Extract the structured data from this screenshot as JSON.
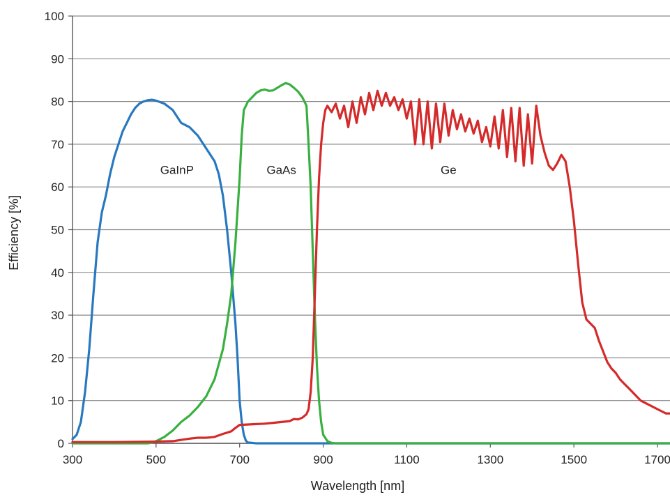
{
  "chart_data": {
    "type": "line",
    "title": "",
    "xlabel": "Wavelength [nm]",
    "ylabel": "Efficiency [%]",
    "xlim": [
      300,
      1730
    ],
    "ylim": [
      0,
      100
    ],
    "xticks": [
      300,
      500,
      700,
      900,
      1100,
      1300,
      1500,
      1700
    ],
    "yticks": [
      0,
      10,
      20,
      30,
      40,
      50,
      60,
      70,
      80,
      90,
      100
    ],
    "grid": "horizontal",
    "legend": "none",
    "series": [
      {
        "name": "GaInP",
        "color": "#2878c0",
        "label_at": [
          550,
          64
        ],
        "points": [
          [
            300,
            1
          ],
          [
            310,
            2
          ],
          [
            320,
            5
          ],
          [
            330,
            12
          ],
          [
            340,
            22
          ],
          [
            350,
            35
          ],
          [
            360,
            47
          ],
          [
            370,
            54
          ],
          [
            380,
            58
          ],
          [
            390,
            63
          ],
          [
            400,
            67
          ],
          [
            410,
            70
          ],
          [
            420,
            73
          ],
          [
            430,
            75
          ],
          [
            440,
            77
          ],
          [
            450,
            78.5
          ],
          [
            460,
            79.5
          ],
          [
            470,
            80
          ],
          [
            480,
            80.3
          ],
          [
            490,
            80.4
          ],
          [
            500,
            80.2
          ],
          [
            520,
            79.5
          ],
          [
            540,
            78
          ],
          [
            560,
            75
          ],
          [
            580,
            74
          ],
          [
            600,
            72
          ],
          [
            620,
            69
          ],
          [
            640,
            66
          ],
          [
            650,
            63
          ],
          [
            660,
            58
          ],
          [
            670,
            50
          ],
          [
            680,
            40
          ],
          [
            690,
            28
          ],
          [
            695,
            20
          ],
          [
            700,
            10
          ],
          [
            705,
            5
          ],
          [
            710,
            2
          ],
          [
            715,
            0.6
          ],
          [
            720,
            0.2
          ],
          [
            740,
            0
          ],
          [
            1730,
            0
          ]
        ]
      },
      {
        "name": "GaAs",
        "color": "#38b040",
        "label_at": [
          800,
          64
        ],
        "points": [
          [
            300,
            0
          ],
          [
            480,
            0
          ],
          [
            490,
            0.2
          ],
          [
            500,
            0.5
          ],
          [
            520,
            1.5
          ],
          [
            540,
            3
          ],
          [
            560,
            5
          ],
          [
            580,
            6.5
          ],
          [
            600,
            8.5
          ],
          [
            620,
            11
          ],
          [
            640,
            15
          ],
          [
            660,
            22
          ],
          [
            670,
            28
          ],
          [
            680,
            35
          ],
          [
            690,
            47
          ],
          [
            700,
            62
          ],
          [
            705,
            72
          ],
          [
            710,
            78
          ],
          [
            720,
            80
          ],
          [
            730,
            81
          ],
          [
            740,
            82
          ],
          [
            750,
            82.6
          ],
          [
            760,
            82.8
          ],
          [
            770,
            82.5
          ],
          [
            780,
            82.6
          ],
          [
            790,
            83.2
          ],
          [
            800,
            83.8
          ],
          [
            810,
            84.3
          ],
          [
            820,
            84
          ],
          [
            830,
            83.2
          ],
          [
            840,
            82.3
          ],
          [
            850,
            81
          ],
          [
            860,
            79
          ],
          [
            865,
            70
          ],
          [
            870,
            60
          ],
          [
            875,
            45
          ],
          [
            880,
            30
          ],
          [
            885,
            18
          ],
          [
            890,
            10
          ],
          [
            895,
            5
          ],
          [
            900,
            2
          ],
          [
            910,
            0.5
          ],
          [
            920,
            0.1
          ],
          [
            930,
            0
          ],
          [
            1730,
            0
          ]
        ]
      },
      {
        "name": "Ge",
        "color": "#d42a2a",
        "label_at": [
          1200,
          64
        ],
        "points": [
          [
            300,
            0.3
          ],
          [
            400,
            0.3
          ],
          [
            500,
            0.4
          ],
          [
            540,
            0.5
          ],
          [
            560,
            0.8
          ],
          [
            580,
            1.1
          ],
          [
            600,
            1.3
          ],
          [
            620,
            1.3
          ],
          [
            640,
            1.5
          ],
          [
            660,
            2.2
          ],
          [
            680,
            2.8
          ],
          [
            690,
            3.6
          ],
          [
            700,
            4.3
          ],
          [
            720,
            4.4
          ],
          [
            740,
            4.5
          ],
          [
            760,
            4.6
          ],
          [
            780,
            4.8
          ],
          [
            800,
            5
          ],
          [
            820,
            5.2
          ],
          [
            830,
            5.7
          ],
          [
            840,
            5.6
          ],
          [
            850,
            6
          ],
          [
            860,
            6.8
          ],
          [
            865,
            8
          ],
          [
            870,
            12
          ],
          [
            875,
            20
          ],
          [
            880,
            35
          ],
          [
            885,
            50
          ],
          [
            890,
            62
          ],
          [
            895,
            70
          ],
          [
            900,
            75
          ],
          [
            905,
            78
          ],
          [
            910,
            79
          ],
          [
            920,
            77.5
          ],
          [
            930,
            79.5
          ],
          [
            940,
            76
          ],
          [
            950,
            79
          ],
          [
            960,
            74
          ],
          [
            970,
            80
          ],
          [
            980,
            75
          ],
          [
            990,
            81
          ],
          [
            1000,
            77
          ],
          [
            1010,
            82
          ],
          [
            1020,
            78
          ],
          [
            1030,
            82.5
          ],
          [
            1040,
            79
          ],
          [
            1050,
            82
          ],
          [
            1060,
            79
          ],
          [
            1070,
            81
          ],
          [
            1080,
            78
          ],
          [
            1090,
            80.5
          ],
          [
            1100,
            76
          ],
          [
            1110,
            80
          ],
          [
            1120,
            70
          ],
          [
            1130,
            80.5
          ],
          [
            1140,
            70
          ],
          [
            1150,
            80
          ],
          [
            1160,
            69
          ],
          [
            1170,
            79.5
          ],
          [
            1180,
            70.5
          ],
          [
            1190,
            79.5
          ],
          [
            1200,
            72
          ],
          [
            1210,
            78
          ],
          [
            1220,
            73.5
          ],
          [
            1230,
            77
          ],
          [
            1240,
            73
          ],
          [
            1250,
            76
          ],
          [
            1260,
            72.5
          ],
          [
            1270,
            75.5
          ],
          [
            1280,
            70.5
          ],
          [
            1290,
            74
          ],
          [
            1300,
            69.5
          ],
          [
            1310,
            76.5
          ],
          [
            1320,
            69
          ],
          [
            1330,
            78
          ],
          [
            1340,
            67
          ],
          [
            1350,
            78.5
          ],
          [
            1360,
            66
          ],
          [
            1370,
            78.5
          ],
          [
            1380,
            65
          ],
          [
            1390,
            77
          ],
          [
            1400,
            65.5
          ],
          [
            1410,
            79
          ],
          [
            1420,
            72
          ],
          [
            1430,
            68
          ],
          [
            1440,
            65
          ],
          [
            1450,
            64
          ],
          [
            1460,
            65.5
          ],
          [
            1470,
            67.5
          ],
          [
            1480,
            66
          ],
          [
            1490,
            60
          ],
          [
            1500,
            52
          ],
          [
            1510,
            42
          ],
          [
            1520,
            33
          ],
          [
            1530,
            29
          ],
          [
            1540,
            28
          ],
          [
            1550,
            27
          ],
          [
            1560,
            24
          ],
          [
            1570,
            21.5
          ],
          [
            1580,
            19
          ],
          [
            1590,
            17.5
          ],
          [
            1600,
            16.5
          ],
          [
            1610,
            15
          ],
          [
            1620,
            14
          ],
          [
            1630,
            13
          ],
          [
            1640,
            12
          ],
          [
            1650,
            11
          ],
          [
            1660,
            10
          ],
          [
            1670,
            9.5
          ],
          [
            1680,
            9
          ],
          [
            1690,
            8.5
          ],
          [
            1700,
            8
          ],
          [
            1710,
            7.5
          ],
          [
            1720,
            7
          ],
          [
            1730,
            7
          ]
        ]
      }
    ]
  }
}
